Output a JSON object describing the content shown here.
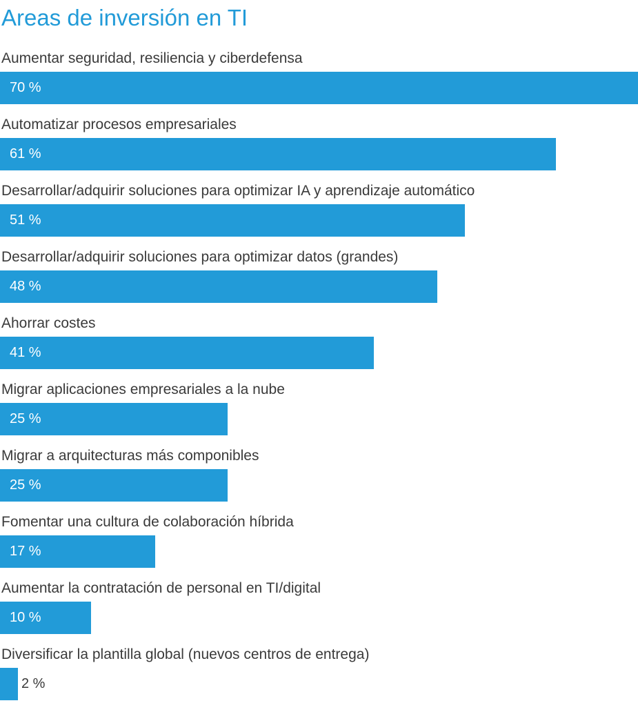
{
  "chart_data": {
    "type": "bar",
    "orientation": "horizontal",
    "title": "Areas de inversión en TI",
    "xlim": [
      0,
      70
    ],
    "grid": false,
    "color": "#229bd8",
    "categories": [
      "Aumentar seguridad, resiliencia y ciberdefensa",
      "Automatizar procesos empresariales",
      "Desarrollar/adquirir soluciones para optimizar IA y aprendizaje automático",
      "Desarrollar/adquirir soluciones para optimizar datos (grandes)",
      "Ahorrar costes",
      "Migrar aplicaciones empresariales a la nube",
      "Migrar a arquitecturas más componibles",
      "Fomentar una cultura de colaboración híbrida",
      "Aumentar la contratación de personal en TI/digital",
      "Diversificar la plantilla global (nuevos centros de entrega)"
    ],
    "values": [
      70,
      61,
      51,
      48,
      41,
      25,
      25,
      17,
      10,
      2
    ],
    "value_labels": [
      "70 %",
      "61 %",
      "51 %",
      "48 %",
      "41 %",
      "25 %",
      "25 %",
      "17 %",
      "10 %",
      "2 %"
    ]
  }
}
